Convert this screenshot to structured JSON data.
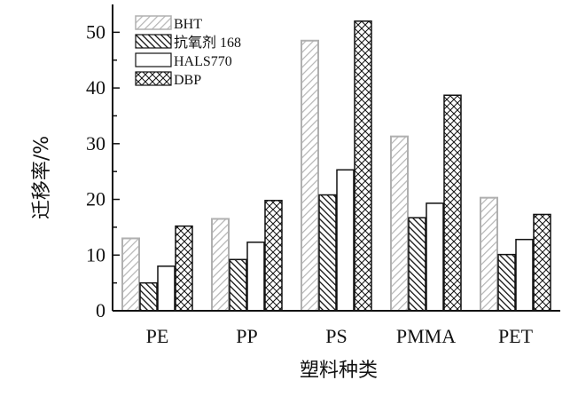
{
  "chart_data": {
    "type": "bar",
    "categories": [
      "PE",
      "PP",
      "PS",
      "PMMA",
      "PET"
    ],
    "series": [
      {
        "name": "BHT",
        "values": [
          13,
          16.5,
          48.5,
          31.3,
          20.3
        ],
        "pattern": "light-gray-diagonal-hatch"
      },
      {
        "name": "抗氧剂 168",
        "values": [
          5,
          9.2,
          20.8,
          16.7,
          10.1
        ],
        "pattern": "dense-black-diagonal-hatch"
      },
      {
        "name": "HALS770",
        "values": [
          8,
          12.3,
          25.3,
          19.3,
          12.8
        ],
        "pattern": "white-fill"
      },
      {
        "name": "DBP",
        "values": [
          15.2,
          19.8,
          52,
          38.7,
          17.3
        ],
        "pattern": "crosshatch"
      }
    ],
    "xlabel": "塑料种类",
    "ylabel": "迁移率/%",
    "ylim": [
      0,
      55
    ],
    "yticks": [
      0,
      10,
      20,
      30,
      40,
      50
    ],
    "grid": false,
    "legend": "top-left"
  }
}
